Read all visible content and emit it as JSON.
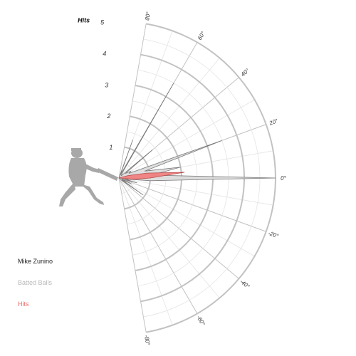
{
  "legend": {
    "player": "Mike Zunino",
    "batted": "Batted Balls",
    "hits": "Hits"
  },
  "colors": {
    "grid": "#c2c2c2",
    "gridMinor": "#e4e4e4",
    "batted_fill": "#dcdcdc",
    "batted_stroke": "#7a7a7a",
    "hits_fill": "#f08080",
    "hits_stroke": "#b84a4a",
    "silhouette": "#a8a8a8"
  },
  "chart_data": {
    "type": "radar",
    "r_title": "Hits",
    "r_ticks": [
      "1",
      "2",
      "3",
      "4",
      "5"
    ],
    "r_range": [
      0,
      5
    ],
    "angle_range": [
      -80,
      80
    ],
    "angle_ticks": [
      "80°",
      "60°",
      "40°",
      "20°",
      "0°",
      "-20°",
      "-40°",
      "-60°",
      "-80°"
    ],
    "angle_tick_values": [
      80,
      60,
      40,
      20,
      0,
      -20,
      -40,
      -60,
      -80
    ],
    "series": [
      {
        "name": "Batted Balls",
        "points": [
          {
            "angle": -80,
            "r": 0
          },
          {
            "angle": -70,
            "r": 0
          },
          {
            "angle": -60,
            "r": 0
          },
          {
            "angle": -50,
            "r": 0
          },
          {
            "angle": -40,
            "r": 0.1
          },
          {
            "angle": -35,
            "r": 0.95
          },
          {
            "angle": -30,
            "r": 0.1
          },
          {
            "angle": -25,
            "r": 0.45
          },
          {
            "angle": -20,
            "r": 0.1
          },
          {
            "angle": -15,
            "r": 0.6
          },
          {
            "angle": -10,
            "r": 0.2
          },
          {
            "angle": -5,
            "r": 1.0
          },
          {
            "angle": 0,
            "r": 5.0
          },
          {
            "angle": 5,
            "r": 1.05
          },
          {
            "angle": 10,
            "r": 2.0
          },
          {
            "angle": 15,
            "r": 0.85
          },
          {
            "angle": 20,
            "r": 3.5
          },
          {
            "angle": 25,
            "r": 0.35
          },
          {
            "angle": 30,
            "r": 0.45
          },
          {
            "angle": 35,
            "r": 0.25
          },
          {
            "angle": 40,
            "r": 1.4
          },
          {
            "angle": 45,
            "r": 0.1
          },
          {
            "angle": 50,
            "r": 0.15
          },
          {
            "angle": 55,
            "r": 0.15
          },
          {
            "angle": 60,
            "r": 3.5
          },
          {
            "angle": 65,
            "r": 0.1
          },
          {
            "angle": 70,
            "r": 1.3
          },
          {
            "angle": 75,
            "r": 0
          },
          {
            "angle": 80,
            "r": 0
          }
        ]
      },
      {
        "name": "Hits",
        "points": [
          {
            "angle": -80,
            "r": 0
          },
          {
            "angle": -10,
            "r": 0
          },
          {
            "angle": -5,
            "r": 0.5
          },
          {
            "angle": 0,
            "r": 1.0
          },
          {
            "angle": 5,
            "r": 2.1
          },
          {
            "angle": 10,
            "r": 0.9
          },
          {
            "angle": 15,
            "r": 0.3
          },
          {
            "angle": 20,
            "r": 0
          },
          {
            "angle": 80,
            "r": 0
          }
        ]
      }
    ]
  }
}
